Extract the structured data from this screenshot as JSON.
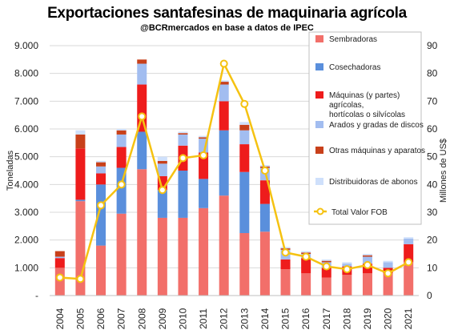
{
  "title": "Exportaciones santafesinas de maquinaria agrícola",
  "subtitle": "@BCRmercados en base a datos de IPEC",
  "chart_data": {
    "type": "bar",
    "stacked": true,
    "categories": [
      "2004",
      "2005",
      "2006",
      "2007",
      "2008",
      "2009",
      "2010",
      "2011",
      "2012",
      "2013",
      "2014",
      "2015",
      "2016",
      "2017",
      "2018",
      "2019",
      "2020",
      "2021"
    ],
    "y_left": {
      "label": "Toneladas",
      "ylim": [
        0,
        9000
      ],
      "ticks": [
        "-",
        "1.000",
        "2.000",
        "3.000",
        "4.000",
        "5.000",
        "6.000",
        "7.000",
        "8.000",
        "9.000"
      ]
    },
    "y_right": {
      "label": "Millones de US$",
      "ylim": [
        0,
        90
      ],
      "ticks": [
        "0",
        "10",
        "20",
        "30",
        "40",
        "50",
        "60",
        "70",
        "80",
        "90"
      ]
    },
    "series": [
      {
        "name": "Sembradoras",
        "color": "#f26f6a",
        "values": [
          1000,
          3400,
          1800,
          2950,
          4550,
          2800,
          2800,
          3150,
          3600,
          2250,
          2300,
          950,
          800,
          650,
          750,
          800,
          800,
          1200
        ]
      },
      {
        "name": "Cosechadoras",
        "color": "#5a8fdc",
        "values": [
          0,
          50,
          2200,
          1650,
          1350,
          1000,
          1700,
          1050,
          2350,
          2200,
          1000,
          0,
          0,
          0,
          0,
          0,
          0,
          0
        ]
      },
      {
        "name": "Máquinas (y partes) agrícolas, hortícolas o silvícolas",
        "color": "#ee1c1c",
        "values": [
          350,
          1850,
          400,
          750,
          1700,
          500,
          900,
          950,
          1050,
          1000,
          850,
          350,
          550,
          350,
          300,
          350,
          200,
          650
        ]
      },
      {
        "name": "Arados y gradas de discos",
        "color": "#a2bdf0",
        "values": [
          50,
          0,
          250,
          450,
          750,
          450,
          400,
          500,
          600,
          500,
          450,
          350,
          150,
          200,
          100,
          250,
          200,
          200
        ]
      },
      {
        "name": "Otras máquinas y aparatos",
        "color": "#c8401a",
        "values": [
          200,
          500,
          150,
          150,
          150,
          100,
          50,
          50,
          100,
          200,
          50,
          50,
          50,
          50,
          0,
          50,
          0,
          0
        ]
      },
      {
        "name": "Distribuidoras de abonos",
        "color": "#cfe0fb",
        "values": [
          0,
          150,
          50,
          50,
          0,
          150,
          50,
          50,
          50,
          100,
          50,
          50,
          50,
          50,
          50,
          50,
          50,
          50
        ]
      }
    ],
    "line": {
      "name": "Total Valor FOB",
      "color": "#f5c211",
      "axis": "right",
      "values": [
        6.5,
        6.0,
        32.5,
        40.0,
        64.5,
        38.0,
        49.5,
        50.5,
        83.5,
        69.0,
        45.0,
        15.5,
        14.0,
        10.5,
        9.5,
        11.0,
        8.0,
        12.0
      ]
    },
    "legend_position": "right"
  }
}
